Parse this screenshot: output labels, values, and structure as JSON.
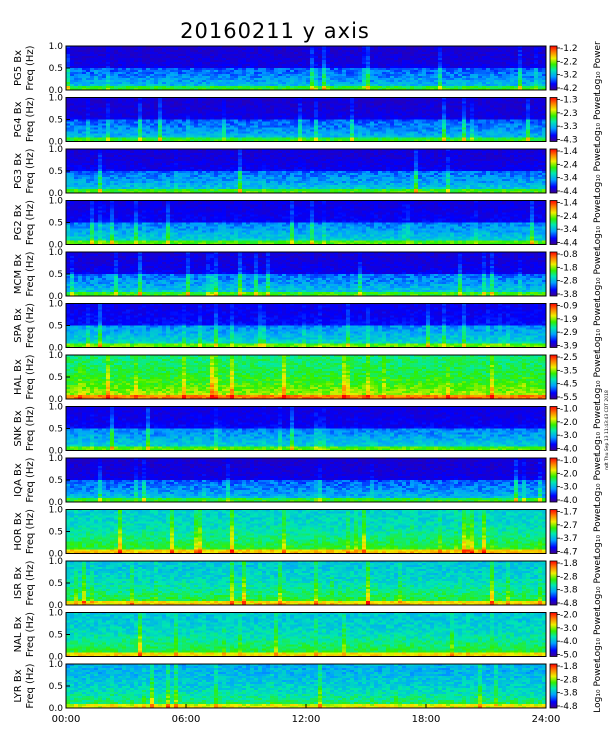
{
  "chart_data": {
    "type": "heatmap",
    "title": "20160211 y axis",
    "xlabel": "",
    "x_ticks": [
      "00:00",
      "06:00",
      "12:00",
      "18:00",
      "24:00"
    ],
    "x_range_hours": [
      0,
      24
    ],
    "freq_ticks": [
      "0.0",
      "0.5",
      "1.0"
    ],
    "freq_range_hz": [
      0,
      1.0
    ],
    "freq_label": "Freq (Hz)",
    "colorbar_label": "Log₁₀ Power",
    "colormap": [
      "#3c008c",
      "#0000ff",
      "#00a0ff",
      "#00e8b0",
      "#30f000",
      "#f0f000",
      "#ff8000",
      "#ff0000"
    ],
    "side_note": "ndt Thu Sep 13 11:43:43 CDT 2018",
    "panels": [
      {
        "station": "PG5",
        "component": "Bx",
        "cbar_ticks": [
          "-1.2",
          "-2.2",
          "-3.2",
          "-4.2"
        ],
        "cbar_range": [
          -4.2,
          -1.2
        ]
      },
      {
        "station": "PG4",
        "component": "Bx",
        "cbar_ticks": [
          "-1.3",
          "-2.3",
          "-3.3",
          "-4.3"
        ],
        "cbar_range": [
          -4.3,
          -1.3
        ]
      },
      {
        "station": "PG3",
        "component": "Bx",
        "cbar_ticks": [
          "-1.4",
          "-2.4",
          "-3.4",
          "-4.4"
        ],
        "cbar_range": [
          -4.4,
          -1.4
        ]
      },
      {
        "station": "PG2",
        "component": "Bx",
        "cbar_ticks": [
          "-1.4",
          "-2.4",
          "-3.4",
          "-4.4"
        ],
        "cbar_range": [
          -4.4,
          -1.4
        ]
      },
      {
        "station": "MCM",
        "component": "Bx",
        "cbar_ticks": [
          "-0.8",
          "-1.8",
          "-2.8",
          "-3.8"
        ],
        "cbar_range": [
          -3.8,
          -0.8
        ]
      },
      {
        "station": "SPA",
        "component": "Bx",
        "cbar_ticks": [
          "-0.9",
          "-1.9",
          "-2.9",
          "-3.9"
        ],
        "cbar_range": [
          -3.9,
          -0.9
        ]
      },
      {
        "station": "HAL",
        "component": "Bx",
        "cbar_ticks": [
          "-2.5",
          "-3.5",
          "-4.5",
          "-5.5"
        ],
        "cbar_range": [
          -5.5,
          -2.5
        ]
      },
      {
        "station": "SNK",
        "component": "Bx",
        "cbar_ticks": [
          "-1.0",
          "-2.0",
          "-3.0",
          "-4.0"
        ],
        "cbar_range": [
          -4.0,
          -1.0
        ]
      },
      {
        "station": "IQA",
        "component": "Bx",
        "cbar_ticks": [
          "-1.0",
          "-2.0",
          "-3.0",
          "-4.0"
        ],
        "cbar_range": [
          -4.0,
          -1.0
        ]
      },
      {
        "station": "HOR",
        "component": "Bx",
        "cbar_ticks": [
          "-1.7",
          "-2.7",
          "-3.7",
          "-4.7"
        ],
        "cbar_range": [
          -4.7,
          -1.7
        ]
      },
      {
        "station": "ISR",
        "component": "Bx",
        "cbar_ticks": [
          "-1.8",
          "-2.8",
          "-3.8",
          "-4.8"
        ],
        "cbar_range": [
          -4.8,
          -1.8
        ]
      },
      {
        "station": "NAL",
        "component": "Bx",
        "cbar_ticks": [
          "-2.0",
          "-3.0",
          "-4.0",
          "-5.0"
        ],
        "cbar_range": [
          -5.0,
          -2.0
        ]
      },
      {
        "station": "LYR",
        "component": "Bx",
        "cbar_ticks": [
          "-1.8",
          "-2.8",
          "-3.8",
          "-4.8"
        ],
        "cbar_range": [
          -4.8,
          -1.8
        ]
      }
    ]
  }
}
